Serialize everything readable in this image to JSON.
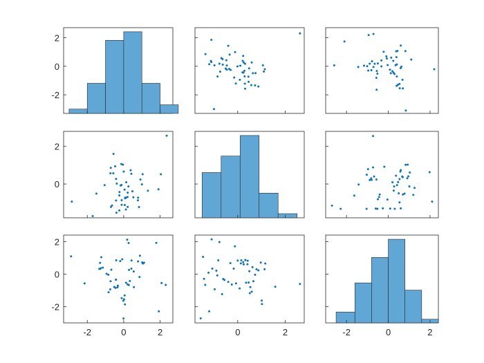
{
  "chart_data": {
    "type": "scatter-matrix",
    "title": "",
    "grid": false,
    "colors": {
      "bar_fill": "#61a7d6",
      "marker": "#0e72b5",
      "axis": "#262626"
    },
    "variables": [
      {
        "name": "",
        "lim": [
          -3.3,
          2.7
        ],
        "ticks": [
          -2,
          0,
          2
        ]
      },
      {
        "name": "",
        "lim": [
          -1.8,
          2.8
        ],
        "ticks": [
          0,
          2
        ]
      },
      {
        "name": "",
        "lim": [
          -3.0,
          2.4
        ],
        "ticks": [
          -2,
          0,
          2
        ]
      }
    ],
    "row_lim": [
      [
        -3.3,
        2.7
      ],
      [
        -1.8,
        2.8
      ],
      [
        -3.0,
        2.4
      ]
    ],
    "histograms": [
      {
        "bin_edges": [
          -3,
          -2,
          -1,
          0,
          1,
          2,
          3
        ],
        "counts": [
          1,
          7,
          17,
          19,
          7,
          2
        ]
      },
      {
        "bin_edges": [
          -1.5,
          -0.7,
          0.1,
          0.9,
          1.7,
          2.5
        ],
        "counts": [
          11,
          15,
          20,
          6,
          1
        ]
      },
      {
        "bin_edges": [
          -2.5,
          -1.6,
          -0.8,
          0,
          0.8,
          1.6,
          2.4
        ],
        "counts": [
          3,
          11,
          18,
          23,
          9,
          1
        ]
      }
    ],
    "x": [
      [
        -0.83,
        0.6
      ],
      [
        -0.09,
        -0.53
      ],
      [
        0.61,
        0.37
      ],
      [
        -0.63,
        1.6
      ],
      [
        0.35,
        -0.59
      ],
      [
        -0.09,
        0.44
      ],
      [
        -0.96,
        -0.48
      ],
      [
        -0.12,
        -0.58
      ],
      [
        -0.42,
        1.0
      ],
      [
        0.37,
        -0.02
      ],
      [
        0.81,
        -0.69
      ],
      [
        1.0,
        0.52
      ],
      [
        -0.49,
        0.44
      ],
      [
        -0.99,
        -0.08
      ],
      [
        1.33,
        -0.75
      ],
      [
        0.11,
        1.75
      ],
      [
        1.81,
        -0.34
      ],
      [
        -0.52,
        0.94
      ],
      [
        0.45,
        -0.69
      ],
      [
        -1.36,
        0.56
      ],
      [
        0.34,
        -0.8
      ],
      [
        -0.1,
        -1.0
      ],
      [
        0.79,
        1.05
      ],
      [
        -0.07,
        1.24
      ],
      [
        0.78,
        1.11
      ],
      [
        -0.71,
        1.31
      ],
      [
        -1.01,
        0.95
      ],
      [
        -0.3,
        0.1
      ],
      [
        -1.1,
        0.06
      ],
      [
        0.53,
        -0.1
      ],
      [
        0.47,
        1.2
      ],
      [
        0.34,
        -0.45
      ],
      [
        -1.3,
        0.36
      ],
      [
        -0.85,
        -0.14
      ],
      [
        0.12,
        -0.22
      ],
      [
        0.4,
        -1.19
      ],
      [
        0.01,
        -0.2
      ],
      [
        0.39,
        0.82
      ],
      [
        0.26,
        -0.8
      ],
      [
        -0.41,
        0.71
      ],
      [
        0.29,
        0.8
      ],
      [
        -1.3,
        -0.8
      ],
      [
        -0.51,
        -1.17
      ],
      [
        1.03,
        -0.76
      ],
      [
        0.71,
        -0.83
      ],
      [
        -0.42,
        -0.1
      ],
      [
        1.14,
        0.27
      ],
      [
        0.99,
        0.35
      ],
      [
        -0.22,
        0.6
      ],
      [
        -0.56,
        0.7
      ]
    ],
    "scatter": [
      {
        "row": 0,
        "col": 1,
        "x": [
          -1.0,
          2.62,
          -0.36,
          -0.74,
          -0.11,
          -0.64,
          0.09,
          0.24,
          -0.4,
          -0.69,
          0.23,
          1.14,
          0.64,
          0.3,
          -0.77,
          0.45,
          -1.36,
          -0.98,
          -1.13,
          -1.11,
          0.2,
          0.75,
          0.46,
          -1.2,
          -0.46,
          0.31,
          0.59,
          -0.51,
          -0.3,
          -0.34,
          1.1,
          0.21,
          0.25,
          0.73,
          -0.15,
          -1.11,
          0.11,
          -0.08,
          0.29,
          0.31,
          -0.01,
          -0.63,
          -0.46,
          0.28,
          0.48,
          0.87,
          -0.48,
          1.06,
          -0.85,
          0.57
        ],
        "y": [
          -3.0,
          2.3,
          -0.19,
          -0.38,
          0.99,
          0.5,
          -0.95,
          -0.45,
          1.43,
          0.57,
          0.72,
          -0.21,
          -0.49,
          -1.22,
          0.18,
          -0.73,
          0.85,
          0.06,
          0.37,
          1.85,
          -0.43,
          -0.48,
          -1.09,
          0.14,
          0.05,
          0.17,
          0.26,
          -0.16,
          -0.26,
          0.81,
          -0.37,
          0.38,
          0.26,
          -1.34,
          -0.79,
          0.29,
          0.04,
          -1.21,
          -0.71,
          -1.57,
          -0.01,
          0.11,
          -0.24,
          -0.32,
          -0.15,
          -1.42,
          0.42,
          0.06,
          -0.72,
          -1.32
        ]
      },
      {
        "row": 0,
        "col": 2,
        "x": [
          -2.59,
          -2.1,
          -1.16,
          -0.71,
          -0.96,
          -1.01,
          -1.44,
          -0.89,
          -0.71,
          -0.56,
          -0.94,
          -0.52,
          -0.33,
          -0.5,
          -0.09,
          0.12,
          0.4,
          0.39,
          0.55,
          0.63,
          0.7,
          1.1,
          0.59,
          0.54,
          0.38,
          0.08,
          -0.07,
          -0.22,
          -0.57,
          -0.81,
          -0.55,
          0.25,
          0.41,
          0.68,
          0.84,
          0.6,
          0.35,
          0.24,
          0.41,
          0.2,
          0.44,
          0.46,
          -0.33,
          -0.65,
          -0.78,
          -0.03,
          0.3,
          0.14,
          2.2,
          0.82
        ],
        "y": [
          0.06,
          1.73,
          0.04,
          2.26,
          -0.3,
          0.0,
          -0.05,
          0.18,
          -0.05,
          -1.64,
          2.18,
          -0.52,
          0.41,
          0.19,
          0.69,
          -0.49,
          -1.37,
          0.64,
          -1.54,
          -0.03,
          -1.55,
          0.47,
          -0.13,
          -1.24,
          1.04,
          -0.24,
          0.54,
          1.01,
          -0.81,
          -0.28,
          -0.33,
          -0.45,
          -0.72,
          -0.95,
          -3.1,
          1.45,
          0.07,
          0.38,
          0.13,
          -0.35,
          1.07,
          -1.3,
          -0.01,
          0.17,
          0.35,
          0.08,
          -0.54,
          0.6,
          -0.21,
          1.06
        ]
      },
      {
        "row": 1,
        "col": 0,
        "x": [
          -2.85,
          2.36,
          -0.24,
          0.08,
          -1.05,
          0.53,
          -1.5,
          -0.64,
          1.0,
          -1.7,
          -0.4,
          -0.13,
          -0.42,
          -0.73,
          0.0,
          0.42,
          0.22,
          -0.23,
          0.79,
          -0.47,
          -0.56,
          0.12,
          -0.7,
          -0.42,
          -0.24,
          0.38,
          1.04,
          0.78,
          0.26,
          0.14,
          -0.11,
          0.48,
          0.05,
          0.84,
          1.33,
          -0.04,
          2.04,
          -0.11,
          0.08,
          0.06,
          -0.57,
          -0.38,
          0.21,
          0.22,
          0.92,
          0.13,
          1.91,
          -0.17,
          -0.12,
          -0.71
        ],
        "y": [
          -0.94,
          2.57,
          -1.41,
          -0.73,
          -0.06,
          -0.71,
          -0.51,
          -1.14,
          -0.02,
          -1.71,
          -1.53,
          1.06,
          0.27,
          0.57,
          0.66,
          0.54,
          -1.22,
          -0.43,
          -0.73,
          0.94,
          1.6,
          -1.36,
          -1.22,
          -0.88,
          -0.61,
          0.73,
          0.52,
          -0.87,
          -0.13,
          0.09,
          -1.11,
          -0.39,
          -0.3,
          -1.23,
          -0.36,
          1.03,
          0.52,
          -0.86,
          -0.76,
          -1.12,
          0.57,
          0.02,
          -0.69,
          -0.46,
          0.24,
          -0.73,
          -0.28,
          -0.08,
          -0.05,
          0.86
        ]
      },
      {
        "row": 1,
        "col": 2,
        "x": [
          -2.7,
          -2.28,
          -1.63,
          -0.97,
          -1.03,
          -1.42,
          -1.04,
          -0.68,
          -0.41,
          -0.57,
          -0.89,
          -0.82,
          -0.73,
          -0.44,
          -0.73,
          -0.04,
          0.26,
          0.58,
          0.7,
          0.54,
          0.91,
          0.96,
          0.47,
          0.2,
          0.28,
          0.31,
          0.54,
          0.67,
          0.83,
          0.93,
          1.03,
          1.2,
          1.98,
          0.6,
          0.69,
          0.5,
          0.42,
          0.78,
          1.01,
          0.6,
          0.37,
          0.09,
          -0.26,
          -0.19,
          -0.52,
          -0.6,
          -0.5,
          -0.8,
          1.26,
          2.1
        ],
        "y": [
          -1.15,
          -1.32,
          -0.62,
          0.79,
          0.49,
          -0.03,
          -1.32,
          0.4,
          -0.56,
          0.24,
          0.21,
          0.3,
          2.55,
          -0.69,
          0.88,
          -0.83,
          -0.35,
          0.66,
          -0.56,
          0.26,
          0.3,
          0.41,
          0.1,
          0.09,
          -0.13,
          -1.32,
          -0.98,
          0.4,
          1.02,
          1.03,
          0.61,
          -0.58,
          0.63,
          0.74,
          0.36,
          -0.5,
          -0.06,
          -0.51,
          -0.13,
          -1.3,
          0.44,
          -1.31,
          -1.3,
          0.92,
          -1.32,
          -1.31,
          -0.81,
          0.22,
          -0.21,
          -0.94
        ]
      },
      {
        "row": 2,
        "col": 0,
        "x": [
          -2.89,
          -2.15,
          -1.34,
          -1.15,
          -1.26,
          -1.3,
          -1.3,
          -1.23,
          -0.94,
          -0.84,
          -0.72,
          -0.74,
          -0.41,
          -0.34,
          -0.19,
          -0.08,
          0.02,
          -0.02,
          -0.11,
          0.05,
          0.28,
          0.21,
          0.29,
          0.27,
          0.42,
          0.55,
          0.56,
          0.79,
          0.87,
          0.89,
          1.05,
          1.12,
          1.02,
          2.08,
          2.31,
          1.79,
          1.93,
          0.43,
          0.34,
          0.13,
          0.07,
          -0.01,
          -0.32,
          -0.45,
          -0.52,
          -0.83,
          -0.42,
          -0.43,
          0.19,
          -0.68
        ],
        "y": [
          1.09,
          -0.57,
          0.32,
          0.4,
          0.36,
          0.69,
          0.32,
          1.04,
          0.02,
          -0.04,
          -0.44,
          -0.94,
          0.85,
          -0.81,
          0.8,
          0.91,
          -1.55,
          -1.64,
          -1.48,
          -1.31,
          -0.67,
          -0.63,
          0.26,
          1.91,
          0.34,
          0.16,
          -0.8,
          0.78,
          -0.18,
          1.13,
          0.65,
          0.7,
          0.72,
          -0.55,
          -0.66,
          1.92,
          -2.29,
          0.84,
          -0.42,
          -0.53,
          -1.86,
          -2.73,
          -0.71,
          -0.85,
          -0.79,
          -1.12,
          -0.34,
          -0.34,
          2.12,
          0.27
        ]
      },
      {
        "row": 2,
        "col": 1,
        "x": [
          -1.56,
          -1.46,
          -1.42,
          -1.37,
          -1.2,
          -1.1,
          -1.07,
          -0.97,
          -0.86,
          -0.82,
          -0.77,
          -0.66,
          -0.56,
          -0.4,
          -0.25,
          -0.12,
          -0.07,
          0.0,
          0.08,
          0.15,
          0.25,
          0.32,
          0.35,
          0.41,
          0.42,
          0.46,
          0.49,
          0.53,
          0.62,
          0.66,
          0.73,
          0.79,
          0.87,
          1.01,
          1.02,
          1.13,
          1.16,
          1.58,
          2.62,
          0.59,
          0.51,
          0.13,
          -0.17,
          -0.61,
          -0.9,
          -1.23,
          -0.31,
          0.23,
          0.32,
          0.97
        ],
        "y": [
          -2.72,
          1.06,
          -0.29,
          -0.66,
          -2.29,
          2.14,
          0.34,
          -0.93,
          -0.08,
          0.85,
          1.97,
          -1.23,
          -0.36,
          -0.48,
          -0.64,
          1.71,
          -0.57,
          0.83,
          -0.88,
          0.85,
          0.6,
          0.86,
          -0.53,
          0.61,
          0.82,
          -0.52,
          0.18,
          -0.8,
          0.43,
          -0.44,
          -0.04,
          0.3,
          0.23,
          -1.63,
          -1.84,
          0.3,
          0.65,
          -0.78,
          -0.61,
          -1.08,
          -1.17,
          0.66,
          0.34,
          -0.3,
          0.21,
          0.09,
          0.67,
          0.73,
          0.87,
          0.71
        ]
      }
    ]
  }
}
